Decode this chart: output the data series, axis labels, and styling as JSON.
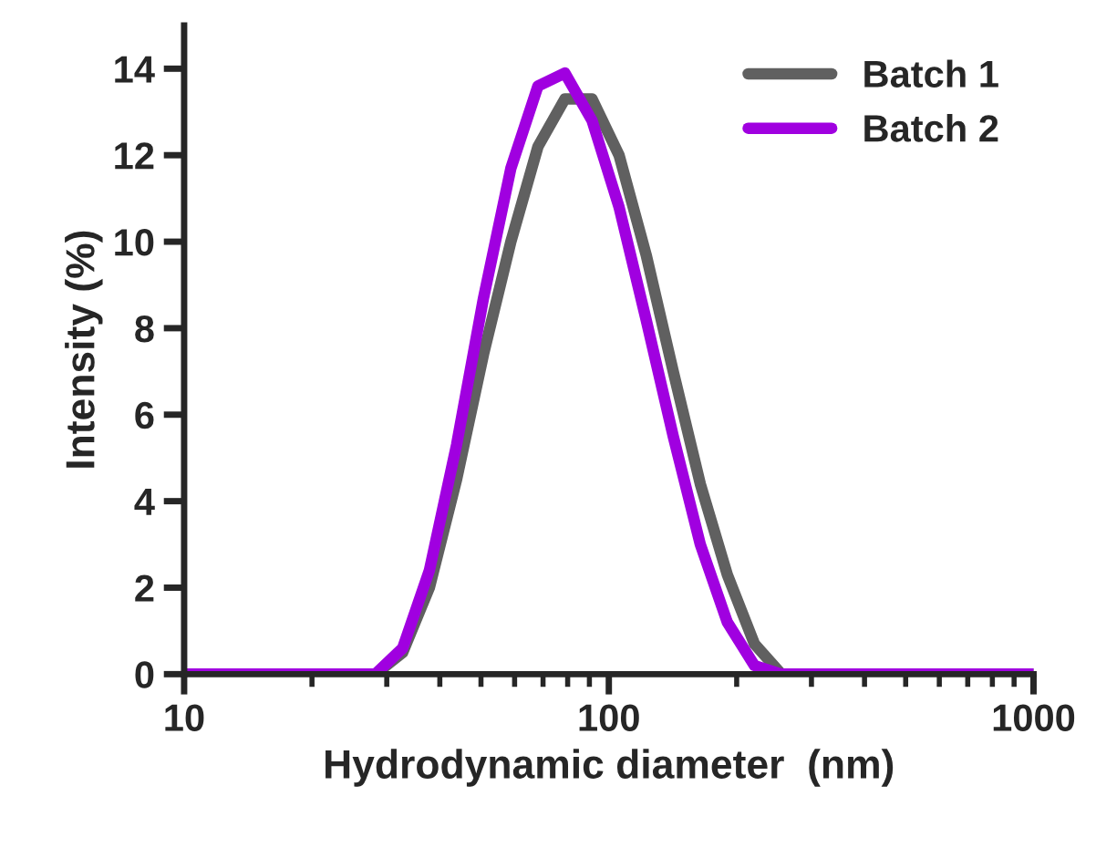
{
  "chart_data": {
    "type": "line",
    "xlabel": "Hydrodynamic diameter  (nm)",
    "ylabel": "Intensity (%)",
    "x": [
      10,
      28.2,
      32.7,
      37.8,
      43.8,
      50.7,
      58.8,
      68.1,
      78.8,
      91.3,
      105.7,
      122.4,
      141.8,
      164.2,
      190.1,
      220.2,
      255,
      1000
    ],
    "series": [
      {
        "name": "Batch 1",
        "color": "#606060",
        "values": [
          0,
          0,
          0.5,
          2.0,
          4.5,
          7.4,
          10.0,
          12.2,
          13.3,
          13.3,
          12.0,
          9.7,
          7.0,
          4.4,
          2.3,
          0.7,
          0,
          0
        ]
      },
      {
        "name": "Batch 2",
        "color": "#a000e0",
        "values": [
          0,
          0,
          0.6,
          2.4,
          5.3,
          8.7,
          11.7,
          13.6,
          13.9,
          12.8,
          10.8,
          8.2,
          5.5,
          3.0,
          1.2,
          0.2,
          0,
          0
        ]
      }
    ],
    "log": "x",
    "xlim": [
      10,
      1000
    ],
    "xticks": [
      10,
      100,
      1000
    ],
    "ylim": [
      0,
      15
    ],
    "yticks": [
      0,
      2,
      4,
      6,
      8,
      10,
      12,
      14
    ],
    "grid": false,
    "legend": "top right",
    "marker": "none",
    "line_style": "solid"
  }
}
